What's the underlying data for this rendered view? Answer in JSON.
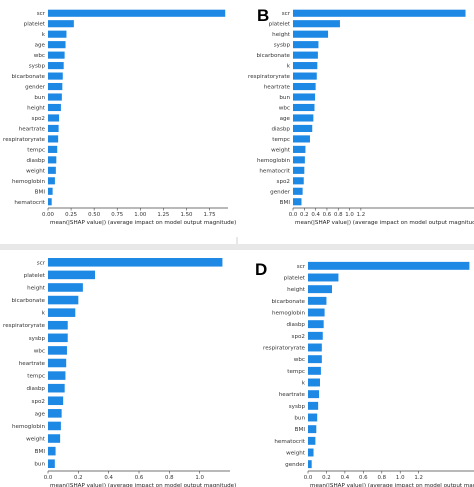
{
  "figure": {
    "bar_color": "#1e88e5",
    "panels": [
      {
        "label": ""
      },
      {
        "label": "B"
      },
      {
        "label": ""
      },
      {
        "label": "D"
      }
    ]
  },
  "chart_data": [
    {
      "type": "bar",
      "orientation": "horizontal",
      "title": "",
      "xlabel": "mean(|SHAP value|) (average impact on model output magnitude)",
      "ylabel": "",
      "xlim": [
        0,
        1.95
      ],
      "xticks": [
        "0.00",
        "0.25",
        "0.50",
        "0.75",
        "1.00",
        "1.25",
        "1.50",
        "1.75"
      ],
      "xtick_values": [
        0,
        0.25,
        0.5,
        0.75,
        1.0,
        1.25,
        1.5,
        1.75
      ],
      "categories": [
        "scr",
        "platelet",
        "k",
        "age",
        "wbc",
        "sysbp",
        "bicarbonate",
        "gender",
        "bun",
        "height",
        "spo2",
        "heartrate",
        "respiratoryrate",
        "tempc",
        "diasbp",
        "weight",
        "hemoglobin",
        "BMI",
        "hematocrit"
      ],
      "values": [
        1.92,
        0.28,
        0.2,
        0.19,
        0.18,
        0.17,
        0.16,
        0.155,
        0.15,
        0.14,
        0.12,
        0.115,
        0.11,
        0.1,
        0.09,
        0.085,
        0.075,
        0.05,
        0.04
      ],
      "grid": false,
      "legend": "none"
    },
    {
      "type": "bar",
      "orientation": "horizontal",
      "title": "",
      "xlabel": "mean(|SHAP value|) (average impact on model output magnitude)",
      "ylabel": "",
      "xlim": [
        0,
        3.2
      ],
      "xticks": [
        "0.0",
        "0.2",
        "0.4",
        "0.6",
        "0.8",
        "1.0",
        "1.2"
      ],
      "xtick_values": [
        0.0,
        0.2,
        0.4,
        0.6,
        0.8,
        1.0,
        1.2
      ],
      "categories": [
        "scr",
        "platelet",
        "height",
        "sysbp",
        "bicarbonate",
        "k",
        "respiratoryrate",
        "heartrate",
        "bun",
        "wbc",
        "age",
        "diasbp",
        "tempc",
        "weight",
        "hemoglobin",
        "hematocrit",
        "spo2",
        "gender",
        "BMI"
      ],
      "values": [
        3.05,
        0.83,
        0.62,
        0.45,
        0.44,
        0.43,
        0.42,
        0.4,
        0.39,
        0.38,
        0.36,
        0.34,
        0.3,
        0.22,
        0.21,
        0.2,
        0.19,
        0.17,
        0.15
      ],
      "grid": false,
      "legend": "none"
    },
    {
      "type": "bar",
      "orientation": "horizontal",
      "title": "",
      "xlabel": "mean(|SHAP value|) (average impact on model output magnitude)",
      "ylabel": "",
      "xlim": [
        0,
        1.2
      ],
      "xticks": [
        "0.0",
        "0.2",
        "0.4",
        "0.6",
        "0.8",
        "1.0"
      ],
      "xtick_values": [
        0,
        0.2,
        0.4,
        0.6,
        0.8,
        1.0
      ],
      "categories": [
        "scr",
        "platelet",
        "height",
        "bicarbonate",
        "k",
        "respiratoryrate",
        "sysbp",
        "wbc",
        "heartrate",
        "tempc",
        "diasbp",
        "spo2",
        "age",
        "hemoglobin",
        "weight",
        "BMI",
        "bun"
      ],
      "values": [
        1.15,
        0.31,
        0.23,
        0.2,
        0.18,
        0.13,
        0.13,
        0.125,
        0.12,
        0.115,
        0.11,
        0.1,
        0.09,
        0.085,
        0.08,
        0.05,
        0.045
      ],
      "grid": false,
      "legend": "none"
    },
    {
      "type": "bar",
      "orientation": "horizontal",
      "title": "",
      "xlabel": "mean(|SHAP value|) (average impact on model output magnitude)",
      "ylabel": "",
      "xlim": [
        0,
        1.8
      ],
      "xticks": [
        "0.0",
        "0.2",
        "0.4",
        "0.6",
        "0.8",
        "1.0",
        "1.2"
      ],
      "xtick_values": [
        0,
        0.2,
        0.4,
        0.6,
        0.8,
        1.0,
        1.2
      ],
      "categories": [
        "scr",
        "platelet",
        "height",
        "bicarbonate",
        "hemoglobin",
        "diasbp",
        "spo2",
        "respiratoryrate",
        "wbc",
        "tempc",
        "k",
        "heartrate",
        "sysbp",
        "bun",
        "BMI",
        "hematocrit",
        "weight",
        "gender"
      ],
      "values": [
        1.75,
        0.33,
        0.26,
        0.2,
        0.18,
        0.17,
        0.16,
        0.15,
        0.15,
        0.14,
        0.13,
        0.12,
        0.11,
        0.1,
        0.09,
        0.08,
        0.06,
        0.04
      ],
      "grid": false,
      "legend": "none"
    }
  ]
}
